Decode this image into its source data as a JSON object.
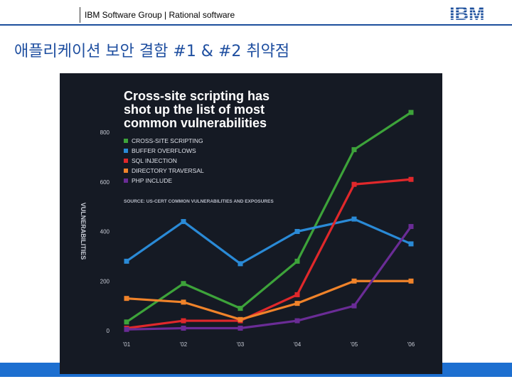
{
  "header": {
    "group_text": "IBM Software Group | Rational software",
    "logo_text": "IBM"
  },
  "slide": {
    "title": "애플리케이션 보안 결함 #1 & #2 취약점"
  },
  "chart_data": {
    "type": "line",
    "title": "Cross-site scripting has shot up the list of most common vulnerabilities",
    "title_lines": [
      "Cross-site scripting has",
      "shot up the list of most",
      "common vulnerabilities"
    ],
    "source": "SOURCE: US-CERT COMMON VULNERABILITIES AND EXPOSURES",
    "ylabel": "VULNERABILITIES",
    "xlabel": "",
    "categories": [
      "'01",
      "'02",
      "'03",
      "'04",
      "'05",
      "'06"
    ],
    "y_ticks": [
      0,
      200,
      400,
      600,
      800
    ],
    "ylim": [
      0,
      900
    ],
    "grid": false,
    "legend_position": "top-left",
    "series": [
      {
        "name": "CROSS-SITE SCRIPTING",
        "color": "#3da33a",
        "values": [
          35,
          190,
          90,
          280,
          730,
          880
        ]
      },
      {
        "name": "BUFFER OVERFLOWS",
        "color": "#2a8ad6",
        "values": [
          280,
          440,
          270,
          400,
          450,
          350
        ]
      },
      {
        "name": "SQL INJECTION",
        "color": "#e0282b",
        "values": [
          10,
          40,
          40,
          145,
          590,
          610
        ]
      },
      {
        "name": "DIRECTORY TRAVERSAL",
        "color": "#f0832a",
        "values": [
          130,
          115,
          45,
          110,
          200,
          200
        ]
      },
      {
        "name": "PHP INCLUDE",
        "color": "#6a2c96",
        "values": [
          5,
          10,
          10,
          40,
          100,
          420
        ]
      }
    ]
  }
}
